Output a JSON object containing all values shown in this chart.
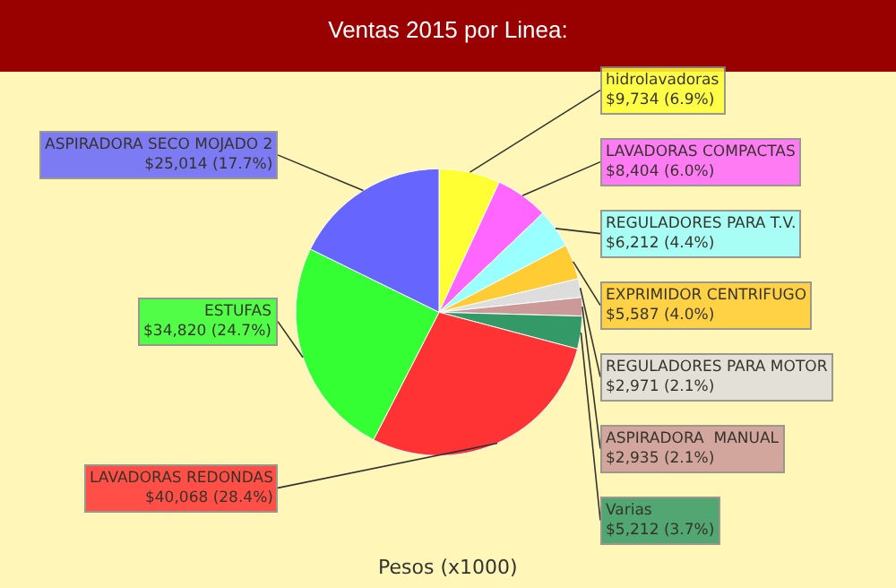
{
  "chart_data": {
    "type": "pie",
    "title": "Ventas 2015 por Linea:",
    "legend": false,
    "categories": [
      "hidrolavadoras",
      "LAVADORAS COMPACTAS",
      "REGULADORES PARA T.V.",
      "EXPRIMIDOR CENTRIFUGO",
      "REGULADORES PARA MOTOR",
      "ASPIRADORA  MANUAL",
      "Varias",
      "LAVADORAS REDONDAS",
      "ESTUFAS",
      "ASPIRADORA SECO MOJADO 2"
    ],
    "values": [
      9734,
      8404,
      6212,
      5587,
      2971,
      2935,
      5212,
      40068,
      34820,
      25014
    ],
    "value_labels": [
      "$9,734 (6.9%)",
      "$8,404 (6.0%)",
      "$6,212 (4.4%)",
      "$5,587 (4.0%)",
      "$2,971 (2.1%)",
      "$2,935 (2.1%)",
      "$5,212 (3.7%)",
      "$40,068 (28.4%)",
      "$34,820 (24.7%)",
      "$25,014 (17.7%)"
    ],
    "colors": [
      "#ffff33",
      "#ff66ff",
      "#99ffff",
      "#ffcc33",
      "#dddddd",
      "#cc9999",
      "#339966",
      "#ff3333",
      "#33ff33",
      "#6666ff"
    ],
    "annotations": [
      "Pesos (x1000)"
    ]
  }
}
